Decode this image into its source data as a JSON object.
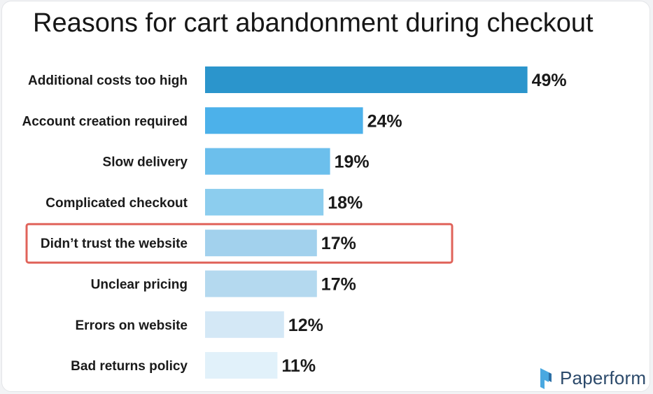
{
  "chart_data": {
    "type": "bar",
    "orientation": "horizontal",
    "title": "Reasons for cart abandonment during checkout",
    "categories": [
      "Additional costs too high",
      "Account creation required",
      "Slow delivery",
      "Complicated checkout",
      "Didn’t trust the website",
      "Unclear pricing",
      "Errors on website",
      "Bad returns policy"
    ],
    "values": [
      49,
      24,
      19,
      18,
      17,
      17,
      12,
      11
    ],
    "value_labels": [
      "49%",
      "24%",
      "19%",
      "18%",
      "17%",
      "17%",
      "12%",
      "11%"
    ],
    "unit": "%",
    "highlighted_category": "Didn’t trust the website",
    "highlight_color": "#e0635a",
    "bar_colors": [
      "#2b95cc",
      "#4cb1ea",
      "#6cbfec",
      "#8ccdee",
      "#a2d1ed",
      "#b4d9ef",
      "#d4e8f6",
      "#e1f1fa"
    ],
    "grid": false,
    "legend": "none"
  },
  "brand": {
    "name": "Paperform",
    "logo_icon": "paperform-logo-icon",
    "color": "#2c4a6b"
  }
}
